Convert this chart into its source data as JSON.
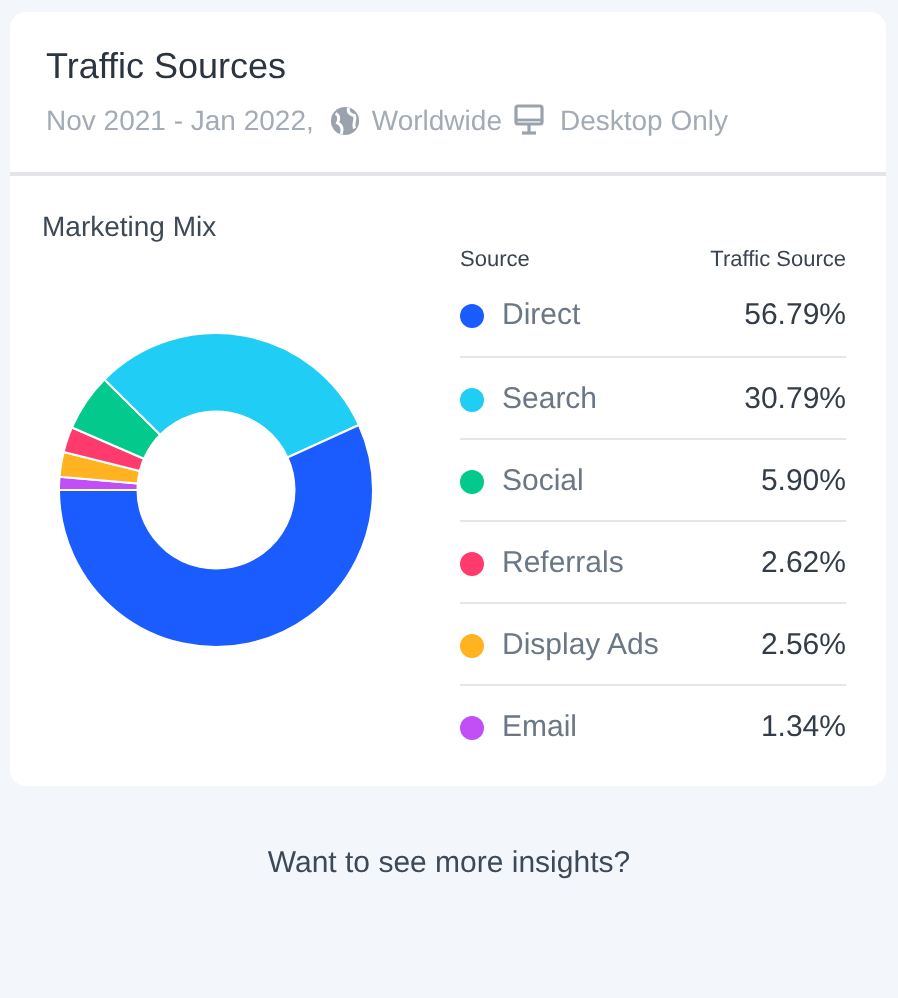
{
  "chart_data": {
    "type": "donut",
    "title": "Traffic Sources",
    "subtitle": "Nov 2021 - Jan 2022,",
    "categories": [
      "Direct",
      "Search",
      "Social",
      "Referrals",
      "Display Ads",
      "Email"
    ],
    "values": [
      56.79,
      30.79,
      5.9,
      2.62,
      2.56,
      1.34
    ],
    "colors": [
      "#1b5cff",
      "#1fcdf5",
      "#03c98c",
      "#ff3a6c",
      "#ffb320",
      "#c14ff5"
    ],
    "value_labels": [
      "56.79%",
      "30.79%",
      "5.90%",
      "2.62%",
      "2.56%",
      "1.34%"
    ],
    "legend": "right",
    "legend_title": "Source",
    "annotations": [
      "Worldwide",
      "Desktop Only",
      "Marketing Mix",
      "Traffic Source",
      "Want to see more insights?"
    ]
  }
}
